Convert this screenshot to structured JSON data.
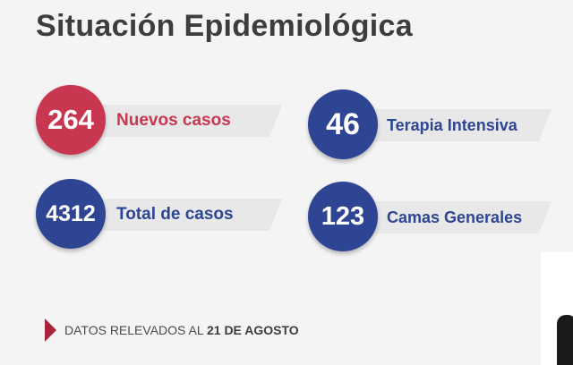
{
  "title": "Situación Epidemiológica",
  "colors": {
    "red": "#c8374f",
    "blue": "#2e4594",
    "banner": "#e8e8e8",
    "accent_arrow": "#a8243a"
  },
  "stats": [
    {
      "value": "264",
      "label": "Nuevos casos",
      "color": "#c8374f"
    },
    {
      "value": "46",
      "label": "Terapia Intensiva",
      "color": "#2e4594"
    },
    {
      "value": "4312",
      "label": "Total de casos",
      "color": "#2e4594"
    },
    {
      "value": "123",
      "label": "Camas Generales",
      "color": "#2e4594"
    }
  ],
  "footer": {
    "prefix": "DATOS RELEVADOS AL",
    "date": "21 DE AGOSTO"
  }
}
